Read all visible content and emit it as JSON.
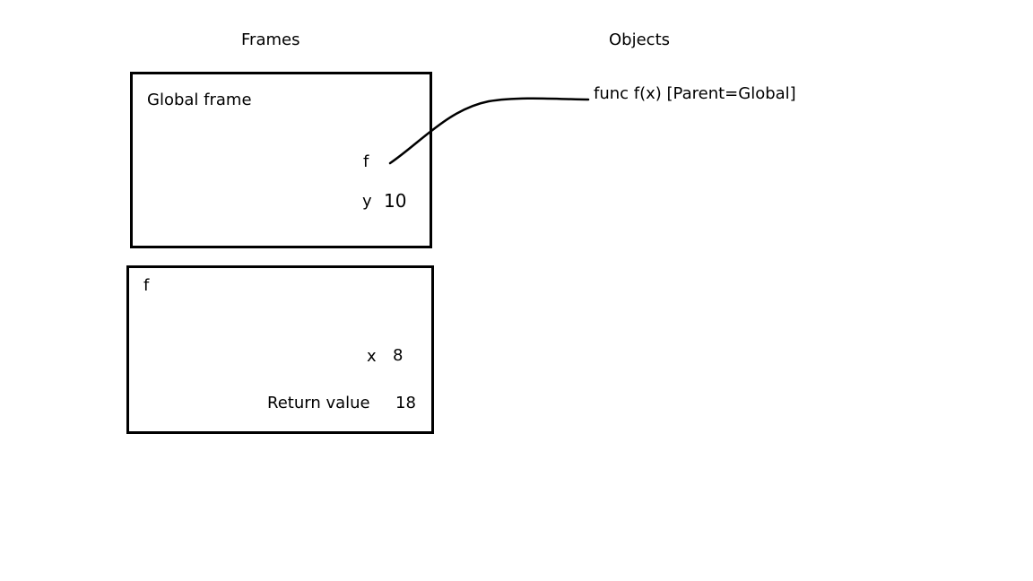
{
  "headings": {
    "frames": "Frames",
    "objects": "Objects"
  },
  "global_frame": {
    "title": "Global frame",
    "bindings": [
      {
        "name": "f",
        "value": ""
      },
      {
        "name": "y",
        "value": "10"
      }
    ]
  },
  "f_frame": {
    "title": "f",
    "bindings": [
      {
        "name": "x",
        "value": "8"
      }
    ],
    "return": {
      "label": "Return value",
      "value": "18"
    }
  },
  "objects": [
    {
      "label": "func f(x) [Parent=Global]"
    }
  ],
  "colors": {
    "ink": "#000000",
    "background": "#ffffff"
  }
}
